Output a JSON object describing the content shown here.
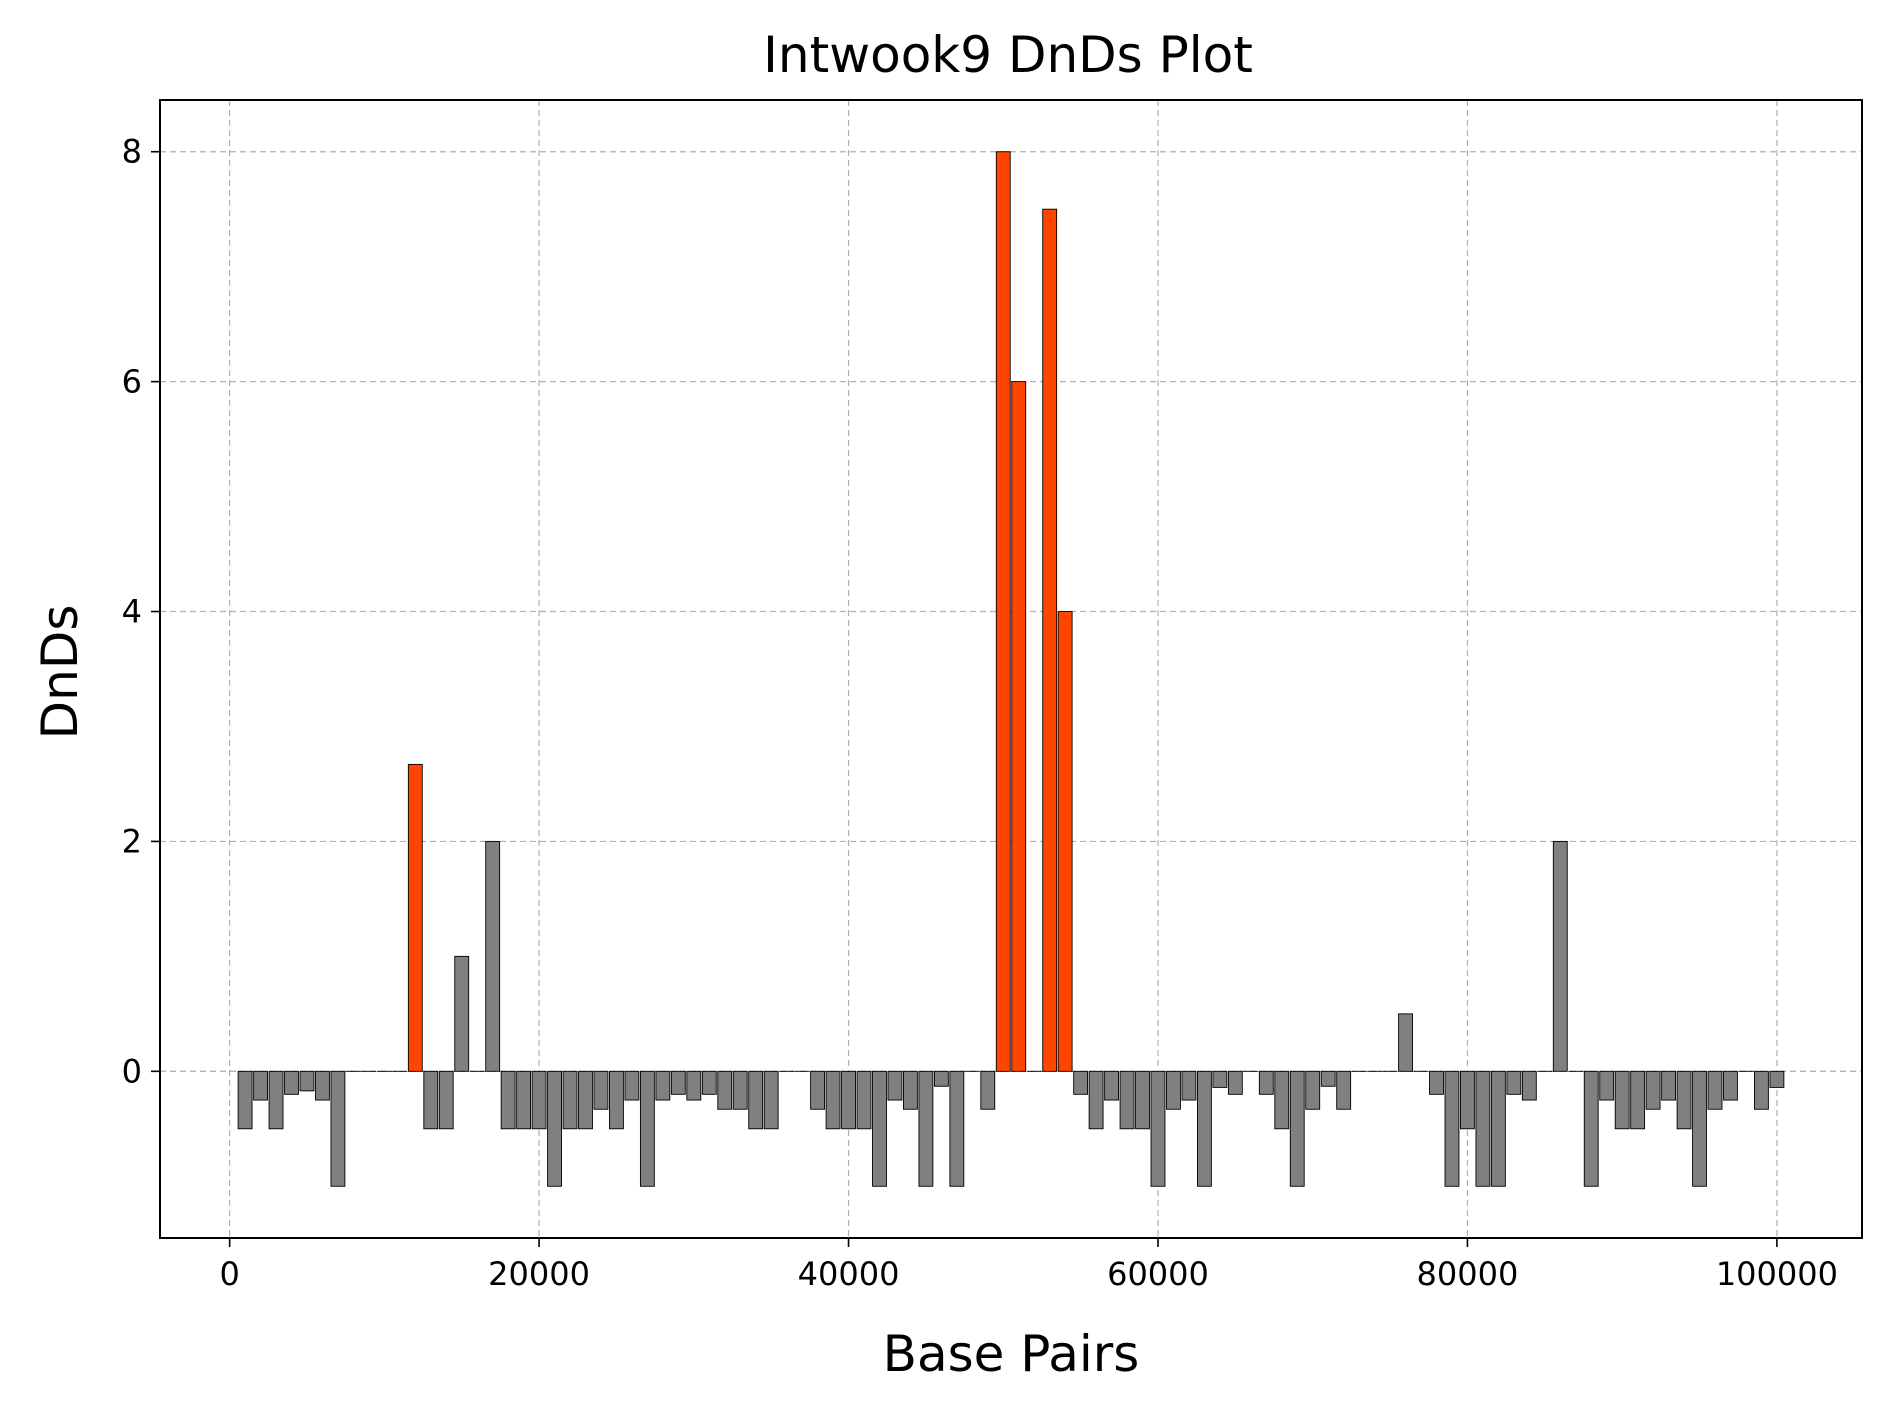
{
  "chart_data": {
    "type": "bar",
    "title": "Intwook9 DnDs Plot",
    "xlabel": "Base Pairs",
    "ylabel": "DnDs",
    "xlim": [
      -4500,
      105500
    ],
    "ylim": [
      -1.45,
      8.45
    ],
    "xticks": [
      0,
      20000,
      40000,
      60000,
      80000,
      100000
    ],
    "yticks": [
      0,
      2,
      4,
      6,
      8
    ],
    "grid": true,
    "bar_width_bp": 900,
    "colors": {
      "normal": "#808080",
      "highlight": "#ff4500",
      "edge": "#000000",
      "grid": "#b0b0b0"
    },
    "threshold": 2.5,
    "x": [
      1000,
      2000,
      3000,
      4000,
      5000,
      6000,
      7000,
      8000,
      9000,
      10000,
      11000,
      12000,
      13000,
      14000,
      15000,
      16000,
      17000,
      18000,
      19000,
      20000,
      21000,
      22000,
      23000,
      24000,
      25000,
      26000,
      27000,
      28000,
      29000,
      30000,
      31000,
      32000,
      33000,
      34000,
      35000,
      36000,
      37000,
      38000,
      39000,
      40000,
      41000,
      42000,
      43000,
      44000,
      45000,
      46000,
      47000,
      48000,
      49000,
      50000,
      51000,
      52000,
      53000,
      54000,
      55000,
      56000,
      57000,
      58000,
      59000,
      60000,
      61000,
      62000,
      63000,
      64000,
      65000,
      66000,
      67000,
      68000,
      69000,
      70000,
      71000,
      72000,
      73000,
      74000,
      75000,
      76000,
      77000,
      78000,
      79000,
      80000,
      81000,
      82000,
      83000,
      84000,
      85000,
      86000,
      87000,
      88000,
      89000,
      90000,
      91000,
      92000,
      93000,
      94000,
      95000,
      96000,
      97000,
      98000,
      99000,
      100000
    ],
    "values": [
      -0.5,
      -0.25,
      -0.5,
      -0.2,
      -0.17,
      -0.25,
      -1,
      0,
      0,
      0,
      0,
      2.67,
      -0.5,
      -0.5,
      1,
      0,
      2,
      -0.5,
      -0.5,
      -0.5,
      -1,
      -0.5,
      -0.5,
      -0.33,
      -0.5,
      -0.25,
      -1,
      -0.25,
      -0.2,
      -0.25,
      -0.2,
      -0.33,
      -0.33,
      -0.5,
      -0.5,
      0,
      0,
      -0.33,
      -0.5,
      -0.5,
      -0.5,
      -1,
      -0.25,
      -0.33,
      -1,
      -0.13,
      -1,
      0,
      -0.33,
      8,
      6,
      0,
      7.5,
      4,
      -0.2,
      -0.5,
      -0.25,
      -0.5,
      -0.5,
      -1,
      -0.33,
      -0.25,
      -1,
      -0.14,
      -0.2,
      0,
      -0.2,
      -0.5,
      -1,
      -0.33,
      -0.13,
      -0.33,
      0,
      0,
      0,
      0.5,
      0,
      -0.2,
      -1,
      -0.5,
      -1,
      -1,
      -0.2,
      -0.25,
      0,
      2,
      0,
      -1,
      -0.25,
      -0.5,
      -0.5,
      -0.33,
      -0.25,
      -0.5,
      -1,
      -0.33,
      -0.25,
      0,
      -0.33,
      -0.14
    ]
  }
}
